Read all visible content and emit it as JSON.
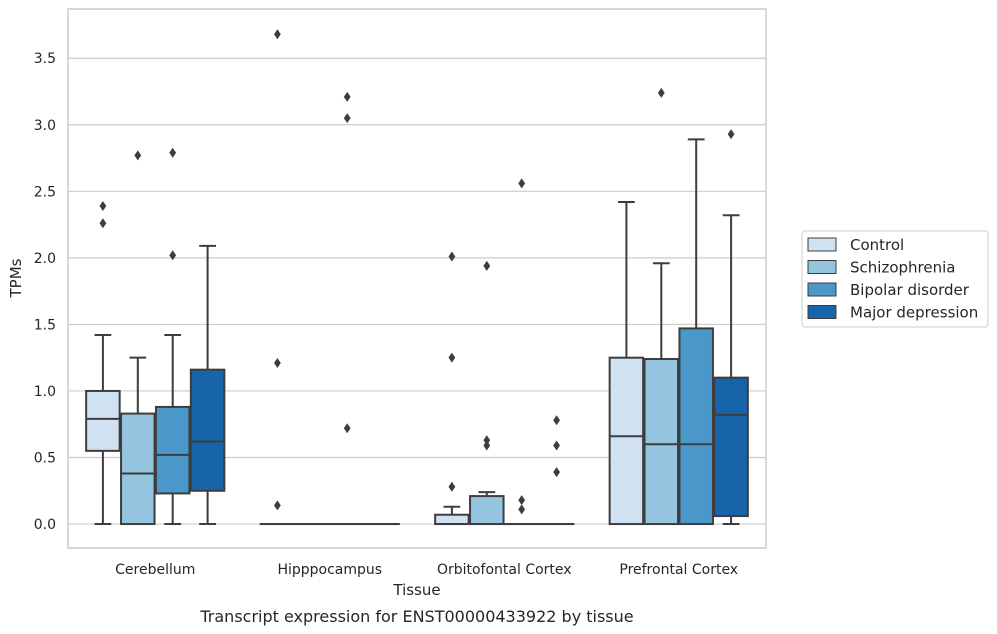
{
  "chart_data": {
    "type": "box",
    "xlabel": "Tissue",
    "ylabel": "TPMs",
    "caption": "Transcript expression for ENST00000433922 by tissue",
    "ylim": [
      -0.18,
      3.87
    ],
    "yticks": [
      "0.0",
      "0.5",
      "1.0",
      "1.5",
      "2.0",
      "2.5",
      "3.0",
      "3.5"
    ],
    "grid": "horizontal",
    "legend_position": "right",
    "categories": [
      "Cerebellum",
      "Hipppocampus",
      "Orbitofontal Cortex",
      "Prefrontal Cortex"
    ],
    "series": [
      {
        "name": "Control",
        "color": "#d0e1f2",
        "boxes": [
          {
            "q1": 0.55,
            "median": 0.79,
            "q3": 1.0,
            "whisker_low": 0.0,
            "whisker_high": 1.42,
            "outliers": [
              2.26,
              2.39
            ]
          },
          {
            "q1": 0.0,
            "median": 0.0,
            "q3": 0.0,
            "whisker_low": 0.0,
            "whisker_high": 0.0,
            "outliers": [
              0.14,
              1.21,
              3.68
            ]
          },
          {
            "q1": 0.0,
            "median": 0.0,
            "q3": 0.07,
            "whisker_low": 0.0,
            "whisker_high": 0.13,
            "outliers": [
              0.28,
              1.25,
              2.01
            ]
          },
          {
            "q1": 0.0,
            "median": 0.66,
            "q3": 1.25,
            "whisker_low": 0.0,
            "whisker_high": 2.42,
            "outliers": []
          }
        ]
      },
      {
        "name": "Schizophrenia",
        "color": "#94c4df",
        "boxes": [
          {
            "q1": 0.0,
            "median": 0.38,
            "q3": 0.83,
            "whisker_low": 0.0,
            "whisker_high": 1.25,
            "outliers": [
              2.77
            ]
          },
          {
            "q1": 0.0,
            "median": 0.0,
            "q3": 0.0,
            "whisker_low": 0.0,
            "whisker_high": 0.0,
            "outliers": []
          },
          {
            "q1": 0.0,
            "median": 0.0,
            "q3": 0.21,
            "whisker_low": 0.0,
            "whisker_high": 0.24,
            "outliers": [
              0.59,
              0.63,
              1.94
            ]
          },
          {
            "q1": 0.0,
            "median": 0.6,
            "q3": 1.24,
            "whisker_low": 0.0,
            "whisker_high": 1.96,
            "outliers": [
              3.24
            ]
          }
        ]
      },
      {
        "name": "Bipolar disorder",
        "color": "#4a98c9",
        "boxes": [
          {
            "q1": 0.23,
            "median": 0.52,
            "q3": 0.88,
            "whisker_low": 0.0,
            "whisker_high": 1.42,
            "outliers": [
              2.02,
              2.79
            ]
          },
          {
            "q1": 0.0,
            "median": 0.0,
            "q3": 0.0,
            "whisker_low": 0.0,
            "whisker_high": 0.0,
            "outliers": [
              0.72,
              3.05,
              3.21
            ]
          },
          {
            "q1": 0.0,
            "median": 0.0,
            "q3": 0.0,
            "whisker_low": 0.0,
            "whisker_high": 0.0,
            "outliers": [
              0.11,
              0.18,
              2.56
            ]
          },
          {
            "q1": 0.0,
            "median": 0.6,
            "q3": 1.47,
            "whisker_low": 0.0,
            "whisker_high": 2.89,
            "outliers": []
          }
        ]
      },
      {
        "name": "Major depression",
        "color": "#1764ab",
        "boxes": [
          {
            "q1": 0.25,
            "median": 0.62,
            "q3": 1.16,
            "whisker_low": 0.0,
            "whisker_high": 2.09,
            "outliers": []
          },
          {
            "q1": 0.0,
            "median": 0.0,
            "q3": 0.0,
            "whisker_low": 0.0,
            "whisker_high": 0.0,
            "outliers": []
          },
          {
            "q1": 0.0,
            "median": 0.0,
            "q3": 0.0,
            "whisker_low": 0.0,
            "whisker_high": 0.0,
            "outliers": [
              0.39,
              0.59,
              0.78
            ]
          },
          {
            "q1": 0.06,
            "median": 0.82,
            "q3": 1.1,
            "whisker_low": 0.0,
            "whisker_high": 2.32,
            "outliers": [
              2.93
            ]
          }
        ]
      }
    ]
  }
}
